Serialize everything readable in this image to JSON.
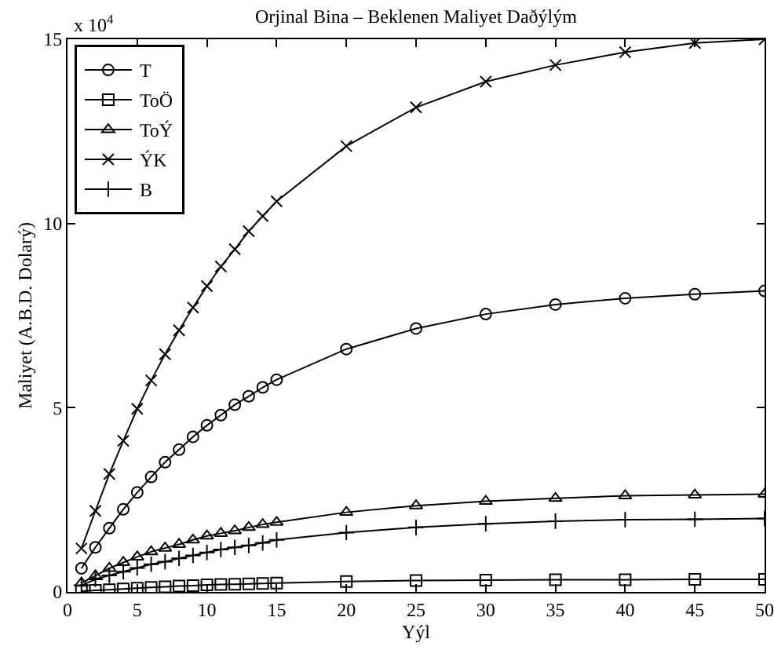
{
  "chart_data": {
    "type": "line",
    "title": "Orjinal Bina – Beklenen Maliyet Daðýlým",
    "xlabel": "Yýl",
    "ylabel": "Maliyet (A.B.D. Dolarý)",
    "annotations": [
      "x 10$^{4}$"
    ],
    "x": [
      1,
      2,
      3,
      4,
      5,
      6,
      7,
      8,
      9,
      10,
      11,
      12,
      13,
      14,
      15,
      20,
      25,
      30,
      35,
      40,
      45,
      50
    ],
    "series": [
      {
        "name": "T",
        "color": "#000000",
        "marker": "circle",
        "values": [
          0.64,
          1.21,
          1.73,
          2.24,
          2.7,
          3.12,
          3.52,
          3.86,
          4.21,
          4.52,
          4.8,
          5.08,
          5.31,
          5.55,
          5.76,
          6.59,
          7.15,
          7.54,
          7.8,
          7.97,
          8.08,
          8.17
        ]
      },
      {
        "name": "ToÖ",
        "color": "#000000",
        "marker": "square",
        "values": [
          0.02,
          0.04,
          0.06,
          0.08,
          0.1,
          0.12,
          0.14,
          0.16,
          0.17,
          0.19,
          0.2,
          0.21,
          0.22,
          0.23,
          0.24,
          0.28,
          0.31,
          0.32,
          0.33,
          0.33,
          0.34,
          0.34
        ]
      },
      {
        "name": "ToÝ",
        "color": "#000000",
        "marker": "triangle",
        "values": [
          0.24,
          0.44,
          0.64,
          0.8,
          0.95,
          1.09,
          1.19,
          1.29,
          1.41,
          1.52,
          1.59,
          1.66,
          1.75,
          1.83,
          1.89,
          2.16,
          2.34,
          2.46,
          2.54,
          2.61,
          2.63,
          2.65
        ]
      },
      {
        "name": "ÝK",
        "color": "#000000",
        "marker": "x",
        "values": [
          1.18,
          2.2,
          3.2,
          4.1,
          4.97,
          5.74,
          6.45,
          7.1,
          7.72,
          8.3,
          8.83,
          9.3,
          9.79,
          10.2,
          10.6,
          12.1,
          13.15,
          13.85,
          14.3,
          14.65,
          14.9,
          15
        ]
      },
      {
        "name": "B",
        "color": "#000000",
        "marker": "cross",
        "values": [
          0.18,
          0.34,
          0.45,
          0.55,
          0.65,
          0.75,
          0.82,
          0.91,
          0.99,
          1.07,
          1.15,
          1.21,
          1.26,
          1.33,
          1.41,
          1.61,
          1.75,
          1.85,
          1.92,
          1.96,
          1.97,
          1.99
        ]
      }
    ],
    "xlim": [
      0,
      50
    ],
    "xticks": [
      0,
      5,
      10,
      15,
      20,
      25,
      30,
      35,
      40,
      45,
      50
    ],
    "ylim": [
      0,
      15
    ],
    "yticks": [
      0,
      5,
      10,
      15
    ],
    "grid": false,
    "legend": "top left",
    "line_style": "solid"
  }
}
